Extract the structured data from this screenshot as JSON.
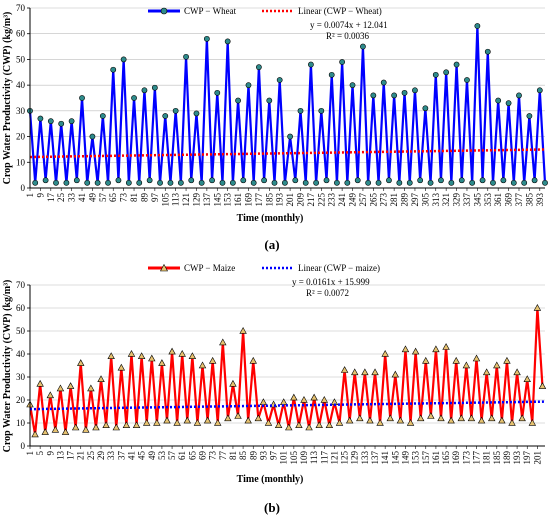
{
  "chart_data": [
    {
      "type": "line",
      "caption": "(a)",
      "xlabel": "Time (monthly)",
      "ylabel": "Crop Water Productivity (CWP) (kg/m³)",
      "ylim": [
        0,
        70
      ],
      "yticks": [
        0,
        10,
        20,
        30,
        40,
        50,
        60,
        70
      ],
      "xlim": [
        1,
        397
      ],
      "x_tick_start": 1,
      "x_tick_step": 8,
      "x_tick_end": 393,
      "legend": {
        "series_label": "CWP − Wheat",
        "trend_label": "Linear (CWP − Wheat)",
        "placement": "top"
      },
      "series_color": "#0000ff",
      "marker_color": "#2e8b8b",
      "trend_color": "#ff0000",
      "trendline": {
        "slope": 0.0074,
        "intercept": 12.041,
        "equation": "y = 0.0074x + 12.041",
        "r2": "R² = 0.0036"
      },
      "series": [
        {
          "name": "CWP − Wheat",
          "x": [
            1,
            5,
            9,
            13,
            17,
            21,
            25,
            29,
            33,
            37,
            41,
            45,
            49,
            53,
            57,
            61,
            65,
            69,
            73,
            77,
            81,
            85,
            89,
            93,
            97,
            101,
            105,
            109,
            113,
            117,
            121,
            125,
            129,
            133,
            137,
            141,
            145,
            149,
            153,
            157,
            161,
            165,
            169,
            173,
            177,
            181,
            185,
            189,
            193,
            197,
            201,
            205,
            209,
            213,
            217,
            221,
            225,
            229,
            233,
            237,
            241,
            245,
            249,
            253,
            257,
            261,
            265,
            269,
            273,
            277,
            281,
            285,
            289,
            293,
            297,
            301,
            305,
            309,
            313,
            317,
            321,
            325,
            329,
            333,
            337,
            341,
            345,
            349,
            353,
            357,
            361,
            365,
            369,
            373,
            377,
            381,
            385,
            389,
            393,
            397
          ],
          "values": [
            30,
            2,
            27,
            3,
            26,
            2,
            25,
            2,
            26,
            3,
            35,
            2,
            20,
            2,
            28,
            2,
            46,
            3,
            50,
            2,
            35,
            2,
            38,
            3,
            39,
            2,
            28,
            2,
            30,
            2,
            51,
            3,
            29,
            2,
            58,
            3,
            37,
            2,
            57,
            2,
            34,
            3,
            40,
            2,
            47,
            3,
            34,
            2,
            42,
            2,
            20,
            3,
            30,
            2,
            48,
            2,
            30,
            3,
            44,
            2,
            49,
            2,
            40,
            3,
            55,
            2,
            36,
            2,
            41,
            3,
            36,
            2,
            37,
            2,
            38,
            3,
            31,
            2,
            44,
            3,
            45,
            2,
            48,
            3,
            42,
            2,
            63,
            3,
            53,
            2,
            34,
            3,
            33,
            2,
            36,
            2,
            28,
            3,
            38,
            2
          ]
        }
      ]
    },
    {
      "type": "line",
      "caption": "(b)",
      "xlabel": "Time (monthly)",
      "ylabel": "Crop Water Productivity (CWP) (kg/m³)",
      "ylim": [
        0,
        70
      ],
      "yticks": [
        0,
        10,
        20,
        30,
        40,
        50,
        60,
        70
      ],
      "xlim": [
        1,
        204
      ],
      "x_tick_start": 1,
      "x_tick_step": 4,
      "x_tick_end": 201,
      "legend": {
        "series_label": "CWP − Maize",
        "trend_label": "Linear  (CWP − maize)",
        "placement": "top"
      },
      "series_color": "#ff0000",
      "marker_color": "#e6c270",
      "trend_color": "#0000ff",
      "trendline": {
        "slope": 0.0161,
        "intercept": 15.999,
        "equation": "y = 0.0161x + 15.999",
        "r2": "R² = 0.0072"
      },
      "series": [
        {
          "name": "CWP − Maize",
          "x": [
            1,
            3,
            5,
            7,
            9,
            11,
            13,
            15,
            17,
            19,
            21,
            23,
            25,
            27,
            29,
            31,
            33,
            35,
            37,
            39,
            41,
            43,
            45,
            47,
            49,
            51,
            53,
            55,
            57,
            59,
            61,
            63,
            65,
            67,
            69,
            71,
            73,
            75,
            77,
            79,
            81,
            83,
            85,
            87,
            89,
            91,
            93,
            95,
            97,
            99,
            101,
            103,
            105,
            107,
            109,
            111,
            113,
            115,
            117,
            119,
            121,
            123,
            125,
            127,
            129,
            131,
            133,
            135,
            137,
            139,
            141,
            143,
            145,
            147,
            149,
            151,
            153,
            155,
            157,
            159,
            161,
            163,
            165,
            167,
            169,
            171,
            173,
            175,
            177,
            179,
            181,
            183,
            185,
            187,
            189,
            191,
            193,
            195,
            197,
            199,
            201,
            203
          ],
          "values": [
            18,
            5,
            27,
            6,
            22,
            7,
            25,
            6,
            26,
            8,
            36,
            7,
            25,
            8,
            29,
            9,
            39,
            8,
            34,
            9,
            40,
            9,
            39,
            10,
            38,
            10,
            36,
            11,
            41,
            10,
            40,
            11,
            39,
            10,
            35,
            11,
            37,
            10,
            45,
            12,
            27,
            13,
            50,
            11,
            37,
            12,
            19,
            10,
            18,
            9,
            19,
            8,
            21,
            9,
            20,
            8,
            21,
            9,
            20,
            9,
            19,
            10,
            33,
            11,
            32,
            12,
            32,
            11,
            32,
            10,
            40,
            12,
            31,
            11,
            42,
            10,
            41,
            12,
            37,
            13,
            42,
            12,
            43,
            11,
            37,
            12,
            35,
            12,
            38,
            11,
            32,
            12,
            35,
            11,
            37,
            10,
            32,
            12,
            29,
            10,
            60,
            26
          ]
        }
      ]
    }
  ]
}
